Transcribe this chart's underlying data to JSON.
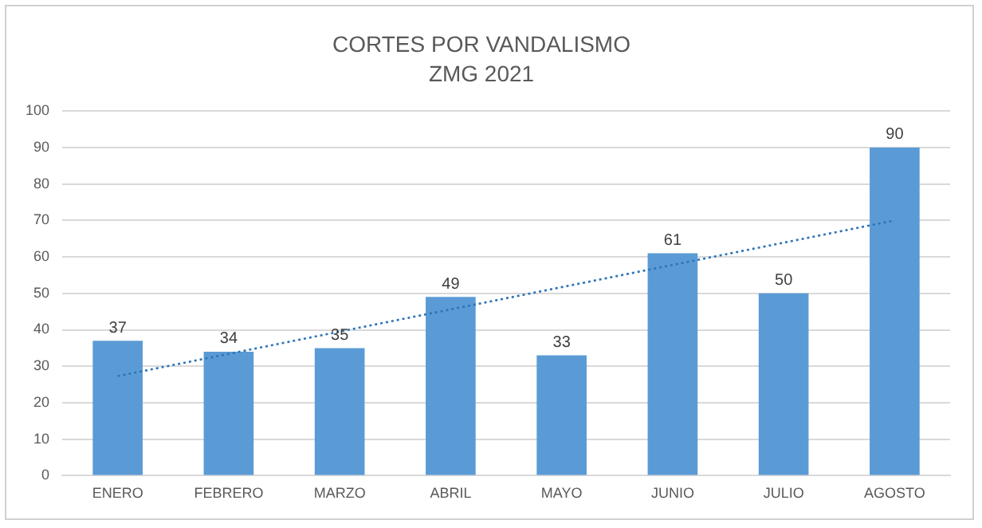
{
  "chart_data": {
    "type": "bar",
    "title": "CORTES POR VANDALISMO",
    "subtitle": "ZMG 2021",
    "categories": [
      "ENERO",
      "FEBRERO",
      "MARZO",
      "ABRIL",
      "MAYO",
      "JUNIO",
      "JULIO",
      "AGOSTO"
    ],
    "series": [
      {
        "color": "#5b9bd5",
        "values": [
          37,
          34,
          35,
          49,
          33,
          61,
          50,
          90
        ],
        "value_labels": [
          "37",
          "34",
          "35",
          "49",
          "33",
          "61",
          "50",
          "90"
        ]
      },
      {
        "type": "line",
        "x": [
          "ENERO",
          "AGOSTO"
        ],
        "values": [
          27.3,
          70
        ],
        "color": "#2e75b6",
        "line_style": "dotted"
      }
    ],
    "ylim": [
      0,
      100
    ],
    "yticks": [
      0,
      10,
      20,
      30,
      40,
      50,
      60,
      70,
      80,
      90,
      100
    ],
    "grid": "y",
    "legend": false
  }
}
